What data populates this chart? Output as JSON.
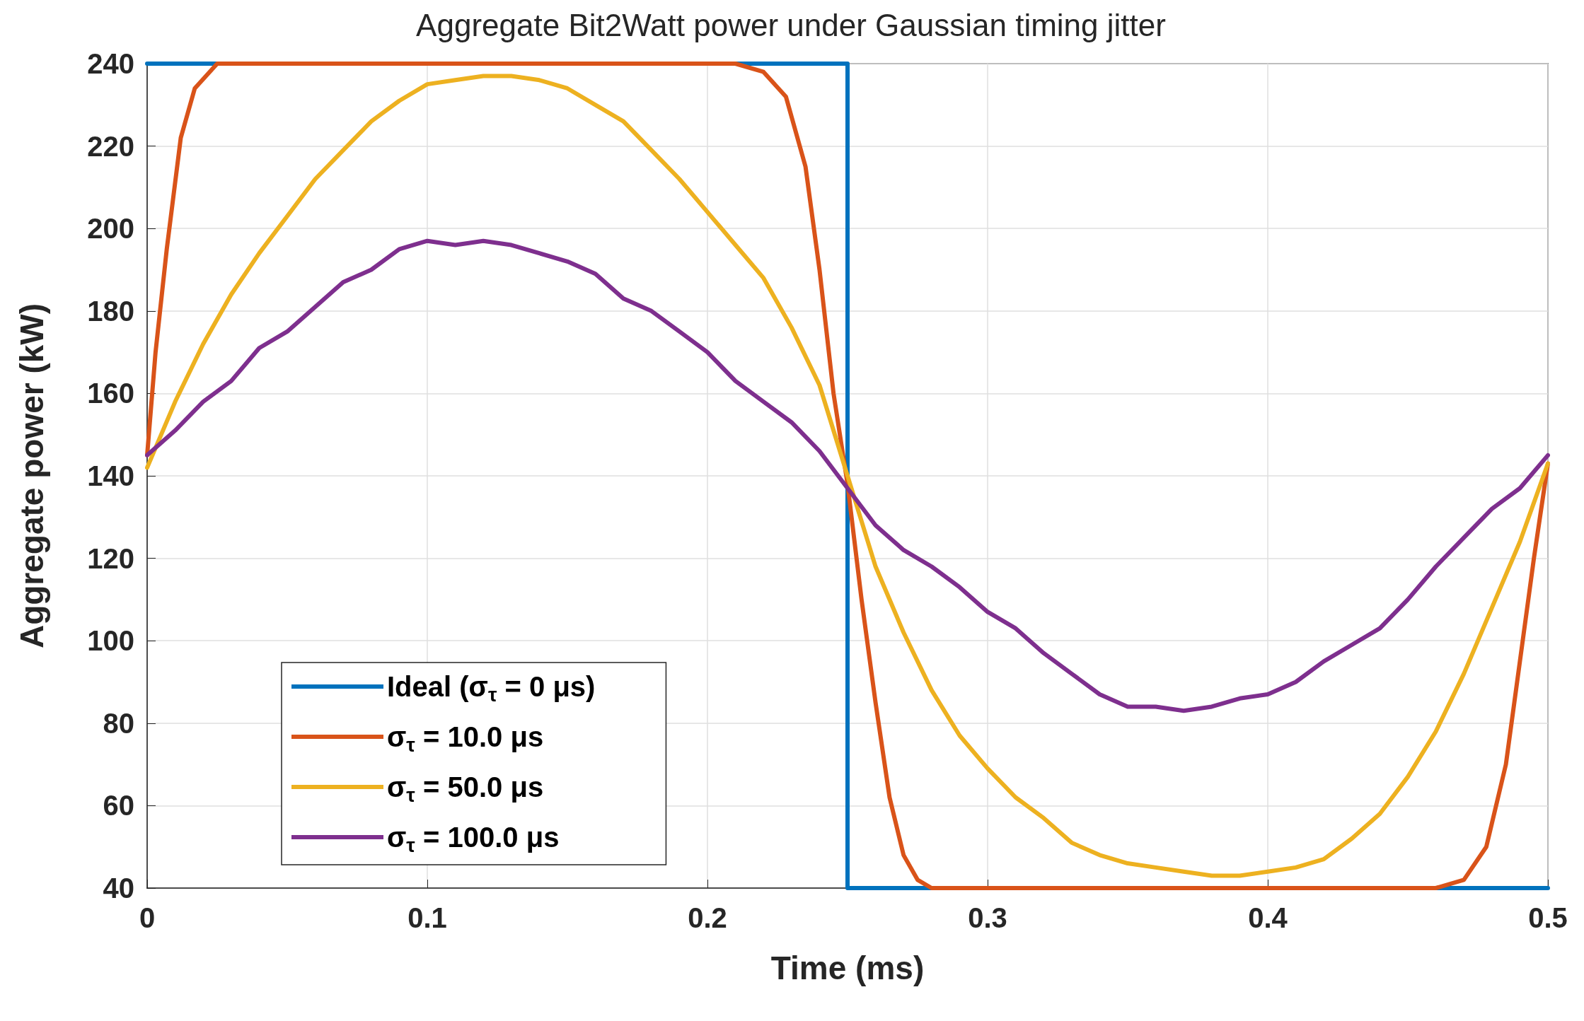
{
  "chart_data": {
    "type": "line",
    "title": "Aggregate Bit2Watt power under Gaussian timing jitter",
    "xlabel": "Time (ms)",
    "ylabel": "Aggregate power (kW)",
    "xlim": [
      0,
      0.5
    ],
    "xticks": [
      0,
      0.1,
      0.2,
      0.3,
      0.4,
      0.5
    ],
    "ylim": [
      40,
      240
    ],
    "yticks": [
      40,
      60,
      80,
      100,
      120,
      140,
      160,
      180,
      200,
      220,
      240
    ],
    "grid": true,
    "legend": "bottom left",
    "marker": "none",
    "line_style": "solid",
    "series": [
      {
        "name": "Ideal (σ$_{τ}$ = 0 μs)",
        "color": "#0072bd",
        "x": [
          0,
          0.25,
          0.25,
          0.5
        ],
        "values": [
          240,
          240,
          40,
          40
        ]
      },
      {
        "name": "σ$_{τ}$ = 10.0 μs",
        "color": "#d95319",
        "x": [
          0,
          0.003,
          0.007,
          0.012,
          0.017,
          0.025,
          0.21,
          0.22,
          0.228,
          0.235,
          0.24,
          0.245,
          0.25,
          0.255,
          0.26,
          0.265,
          0.27,
          0.275,
          0.28,
          0.46,
          0.47,
          0.478,
          0.485,
          0.49,
          0.495,
          0.5
        ],
        "values": [
          145,
          170,
          195,
          222,
          234,
          240,
          240,
          238,
          232,
          215,
          190,
          160,
          138,
          110,
          85,
          62,
          48,
          42,
          40,
          40,
          42,
          50,
          70,
          95,
          120,
          143
        ]
      },
      {
        "name": "σ$_{τ}$ = 50.0 μs",
        "color": "#edb120",
        "x": [
          0,
          0.01,
          0.02,
          0.03,
          0.04,
          0.05,
          0.06,
          0.07,
          0.08,
          0.09,
          0.1,
          0.11,
          0.12,
          0.13,
          0.14,
          0.15,
          0.16,
          0.17,
          0.18,
          0.19,
          0.2,
          0.21,
          0.22,
          0.23,
          0.24,
          0.25,
          0.26,
          0.27,
          0.28,
          0.29,
          0.3,
          0.31,
          0.32,
          0.33,
          0.34,
          0.35,
          0.36,
          0.37,
          0.38,
          0.39,
          0.4,
          0.41,
          0.42,
          0.43,
          0.44,
          0.45,
          0.46,
          0.47,
          0.48,
          0.49,
          0.5
        ],
        "values": [
          142,
          158,
          172,
          184,
          194,
          203,
          212,
          219,
          226,
          231,
          235,
          236,
          237,
          237,
          236,
          234,
          230,
          226,
          219,
          212,
          204,
          196,
          188,
          176,
          162,
          140,
          118,
          102,
          88,
          77,
          69,
          62,
          57,
          51,
          48,
          46,
          45,
          44,
          43,
          43,
          44,
          45,
          47,
          52,
          58,
          67,
          78,
          92,
          108,
          124,
          143
        ]
      },
      {
        "name": "σ$_{τ}$ = 100.0 μs",
        "color": "#7e2f8e",
        "x": [
          0,
          0.01,
          0.02,
          0.03,
          0.04,
          0.05,
          0.06,
          0.07,
          0.08,
          0.09,
          0.1,
          0.11,
          0.12,
          0.13,
          0.14,
          0.15,
          0.16,
          0.17,
          0.18,
          0.19,
          0.2,
          0.21,
          0.22,
          0.23,
          0.24,
          0.25,
          0.26,
          0.27,
          0.28,
          0.29,
          0.3,
          0.31,
          0.32,
          0.33,
          0.34,
          0.35,
          0.36,
          0.37,
          0.38,
          0.39,
          0.4,
          0.41,
          0.42,
          0.43,
          0.44,
          0.45,
          0.46,
          0.47,
          0.48,
          0.49,
          0.5
        ],
        "values": [
          145,
          151,
          158,
          163,
          171,
          175,
          181,
          187,
          190,
          195,
          197,
          196,
          197,
          196,
          194,
          192,
          189,
          183,
          180,
          175,
          170,
          163,
          158,
          153,
          146,
          137,
          128,
          122,
          118,
          113,
          107,
          103,
          97,
          92,
          87,
          84,
          84,
          83,
          84,
          86,
          87,
          90,
          95,
          99,
          103,
          110,
          118,
          125,
          132,
          137,
          145
        ]
      }
    ]
  }
}
